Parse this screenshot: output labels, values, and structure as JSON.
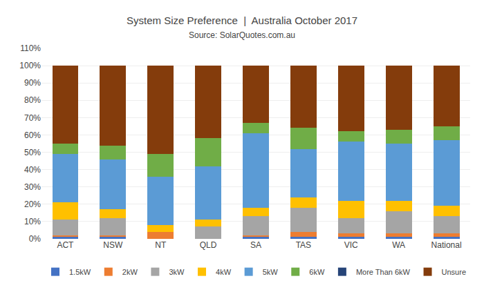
{
  "chart_data": {
    "type": "bar",
    "stacked": true,
    "title": "System Size Preference  |  Australia October 2017",
    "subtitle": "Source: SolarQuotes.com.au",
    "categories": [
      "ACT",
      "NSW",
      "NT",
      "QLD",
      "SA",
      "TAS",
      "VIC",
      "WA",
      "National"
    ],
    "series": [
      {
        "name": "1.5kW",
        "color": "#4472C4",
        "values": [
          1,
          1,
          0,
          0,
          1,
          1,
          1,
          1,
          1
        ]
      },
      {
        "name": "2kW",
        "color": "#ED7D31",
        "values": [
          1,
          1,
          4,
          0,
          1,
          3,
          2,
          2,
          2
        ]
      },
      {
        "name": "3kW",
        "color": "#A5A5A5",
        "values": [
          9,
          10,
          0,
          7,
          11,
          14,
          9,
          13,
          10
        ]
      },
      {
        "name": "4kW",
        "color": "#FFC000",
        "values": [
          10,
          5,
          4,
          4,
          5,
          6,
          10,
          6,
          6
        ]
      },
      {
        "name": "5kW",
        "color": "#5B9BD5",
        "values": [
          28,
          29,
          28,
          31,
          43,
          28,
          34,
          33,
          38
        ]
      },
      {
        "name": "6kW",
        "color": "#70AD47",
        "values": [
          6,
          8,
          13,
          16,
          6,
          12,
          6,
          8,
          8
        ]
      },
      {
        "name": "More Than 6kW",
        "color": "#264478",
        "values": [
          0,
          0,
          0,
          0,
          0,
          0,
          0,
          0,
          0
        ]
      },
      {
        "name": "Unsure",
        "color": "#843C0C",
        "values": [
          45,
          46,
          51,
          42,
          33,
          36,
          38,
          37,
          35
        ]
      }
    ],
    "ylim": [
      0,
      110
    ],
    "yticks": [
      {
        "value": 0,
        "label": "0%"
      },
      {
        "value": 10,
        "label": "10%"
      },
      {
        "value": 20,
        "label": "20%"
      },
      {
        "value": 30,
        "label": "30%"
      },
      {
        "value": 40,
        "label": "40%"
      },
      {
        "value": 50,
        "label": "50%"
      },
      {
        "value": 60,
        "label": "60%"
      },
      {
        "value": 70,
        "label": "70%"
      },
      {
        "value": 80,
        "label": "80%"
      },
      {
        "value": 90,
        "label": "90%"
      },
      {
        "value": 100,
        "label": "100%"
      },
      {
        "value": 110,
        "label": "110%"
      }
    ],
    "grid": true,
    "legend": "bottom"
  }
}
